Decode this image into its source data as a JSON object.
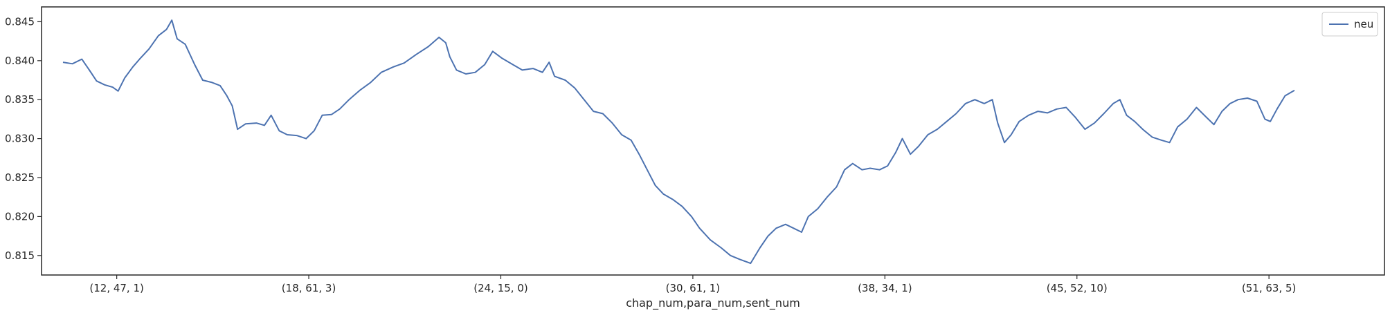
{
  "chart_data": {
    "type": "line",
    "xlabel": "chap_num,para_num,sent_num",
    "ylabel": "",
    "x_ticks": [
      {
        "label": "(12, 47, 1)",
        "x": 0.056
      },
      {
        "label": "(18, 61, 3)",
        "x": 0.199
      },
      {
        "label": "(24, 15, 0)",
        "x": 0.342
      },
      {
        "label": "(30, 61, 1)",
        "x": 0.485
      },
      {
        "label": "(38, 34, 1)",
        "x": 0.628
      },
      {
        "label": "(45, 52, 10)",
        "x": 0.771
      },
      {
        "label": "(51, 63, 5)",
        "x": 0.914
      }
    ],
    "xlim": [
      0,
      1
    ],
    "ylim": [
      0.8125,
      0.8469
    ],
    "y_ticks": [
      0.815,
      0.82,
      0.825,
      0.83,
      0.835,
      0.84,
      0.845
    ],
    "y_tick_labels": [
      "0.815",
      "0.820",
      "0.825",
      "0.830",
      "0.835",
      "0.840",
      "0.845"
    ],
    "legend": {
      "position": "top-right",
      "entries": [
        "neu"
      ]
    },
    "series": [
      {
        "name": "neu",
        "color": "#4c72b0",
        "points": [
          [
            0.016,
            0.8398
          ],
          [
            0.023,
            0.8396
          ],
          [
            0.03,
            0.8402
          ],
          [
            0.036,
            0.8387
          ],
          [
            0.041,
            0.8374
          ],
          [
            0.047,
            0.8369
          ],
          [
            0.053,
            0.8366
          ],
          [
            0.057,
            0.8361
          ],
          [
            0.062,
            0.8378
          ],
          [
            0.068,
            0.8392
          ],
          [
            0.073,
            0.8402
          ],
          [
            0.08,
            0.8415
          ],
          [
            0.087,
            0.8432
          ],
          [
            0.093,
            0.844
          ],
          [
            0.097,
            0.8452
          ],
          [
            0.101,
            0.8428
          ],
          [
            0.107,
            0.8421
          ],
          [
            0.114,
            0.8395
          ],
          [
            0.12,
            0.8375
          ],
          [
            0.127,
            0.8372
          ],
          [
            0.133,
            0.8368
          ],
          [
            0.138,
            0.8355
          ],
          [
            0.142,
            0.8342
          ],
          [
            0.146,
            0.8312
          ],
          [
            0.152,
            0.8319
          ],
          [
            0.16,
            0.832
          ],
          [
            0.166,
            0.8317
          ],
          [
            0.171,
            0.833
          ],
          [
            0.177,
            0.831
          ],
          [
            0.183,
            0.8305
          ],
          [
            0.19,
            0.8304
          ],
          [
            0.197,
            0.83
          ],
          [
            0.203,
            0.831
          ],
          [
            0.209,
            0.833
          ],
          [
            0.216,
            0.8331
          ],
          [
            0.222,
            0.8338
          ],
          [
            0.229,
            0.835
          ],
          [
            0.237,
            0.8362
          ],
          [
            0.245,
            0.8372
          ],
          [
            0.253,
            0.8385
          ],
          [
            0.262,
            0.8392
          ],
          [
            0.27,
            0.8397
          ],
          [
            0.279,
            0.8408
          ],
          [
            0.288,
            0.8418
          ],
          [
            0.296,
            0.843
          ],
          [
            0.301,
            0.8423
          ],
          [
            0.304,
            0.8405
          ],
          [
            0.309,
            0.8388
          ],
          [
            0.316,
            0.8383
          ],
          [
            0.323,
            0.8385
          ],
          [
            0.33,
            0.8395
          ],
          [
            0.336,
            0.8412
          ],
          [
            0.343,
            0.8403
          ],
          [
            0.351,
            0.8395
          ],
          [
            0.358,
            0.8388
          ],
          [
            0.366,
            0.839
          ],
          [
            0.373,
            0.8385
          ],
          [
            0.378,
            0.8398
          ],
          [
            0.382,
            0.838
          ],
          [
            0.39,
            0.8375
          ],
          [
            0.397,
            0.8365
          ],
          [
            0.404,
            0.835
          ],
          [
            0.411,
            0.8335
          ],
          [
            0.418,
            0.8332
          ],
          [
            0.425,
            0.832
          ],
          [
            0.432,
            0.8305
          ],
          [
            0.439,
            0.8298
          ],
          [
            0.445,
            0.828
          ],
          [
            0.451,
            0.826
          ],
          [
            0.457,
            0.824
          ],
          [
            0.463,
            0.8229
          ],
          [
            0.47,
            0.8222
          ],
          [
            0.477,
            0.8213
          ],
          [
            0.484,
            0.82
          ],
          [
            0.49,
            0.8185
          ],
          [
            0.498,
            0.817
          ],
          [
            0.506,
            0.816
          ],
          [
            0.513,
            0.815
          ],
          [
            0.52,
            0.8145
          ],
          [
            0.528,
            0.814
          ],
          [
            0.535,
            0.816
          ],
          [
            0.541,
            0.8175
          ],
          [
            0.547,
            0.8185
          ],
          [
            0.554,
            0.819
          ],
          [
            0.56,
            0.8185
          ],
          [
            0.566,
            0.818
          ],
          [
            0.571,
            0.82
          ],
          [
            0.578,
            0.821
          ],
          [
            0.585,
            0.8225
          ],
          [
            0.592,
            0.8238
          ],
          [
            0.598,
            0.826
          ],
          [
            0.604,
            0.8268
          ],
          [
            0.611,
            0.826
          ],
          [
            0.617,
            0.8262
          ],
          [
            0.624,
            0.826
          ],
          [
            0.63,
            0.8265
          ],
          [
            0.636,
            0.8282
          ],
          [
            0.641,
            0.83
          ],
          [
            0.647,
            0.828
          ],
          [
            0.653,
            0.829
          ],
          [
            0.66,
            0.8305
          ],
          [
            0.667,
            0.8312
          ],
          [
            0.674,
            0.8322
          ],
          [
            0.681,
            0.8332
          ],
          [
            0.688,
            0.8345
          ],
          [
            0.695,
            0.835
          ],
          [
            0.702,
            0.8345
          ],
          [
            0.708,
            0.835
          ],
          [
            0.712,
            0.832
          ],
          [
            0.717,
            0.8295
          ],
          [
            0.722,
            0.8305
          ],
          [
            0.728,
            0.8322
          ],
          [
            0.735,
            0.833
          ],
          [
            0.742,
            0.8335
          ],
          [
            0.749,
            0.8333
          ],
          [
            0.756,
            0.8338
          ],
          [
            0.763,
            0.834
          ],
          [
            0.77,
            0.8327
          ],
          [
            0.777,
            0.8312
          ],
          [
            0.784,
            0.832
          ],
          [
            0.791,
            0.8332
          ],
          [
            0.798,
            0.8345
          ],
          [
            0.803,
            0.835
          ],
          [
            0.808,
            0.833
          ],
          [
            0.814,
            0.8322
          ],
          [
            0.82,
            0.8312
          ],
          [
            0.827,
            0.8302
          ],
          [
            0.834,
            0.8298
          ],
          [
            0.84,
            0.8295
          ],
          [
            0.846,
            0.8315
          ],
          [
            0.853,
            0.8325
          ],
          [
            0.86,
            0.834
          ],
          [
            0.867,
            0.8328
          ],
          [
            0.873,
            0.8318
          ],
          [
            0.879,
            0.8335
          ],
          [
            0.885,
            0.8345
          ],
          [
            0.891,
            0.835
          ],
          [
            0.898,
            0.8352
          ],
          [
            0.905,
            0.8348
          ],
          [
            0.911,
            0.8325
          ],
          [
            0.915,
            0.8322
          ],
          [
            0.92,
            0.8338
          ],
          [
            0.926,
            0.8355
          ],
          [
            0.933,
            0.8362
          ]
        ]
      }
    ]
  }
}
